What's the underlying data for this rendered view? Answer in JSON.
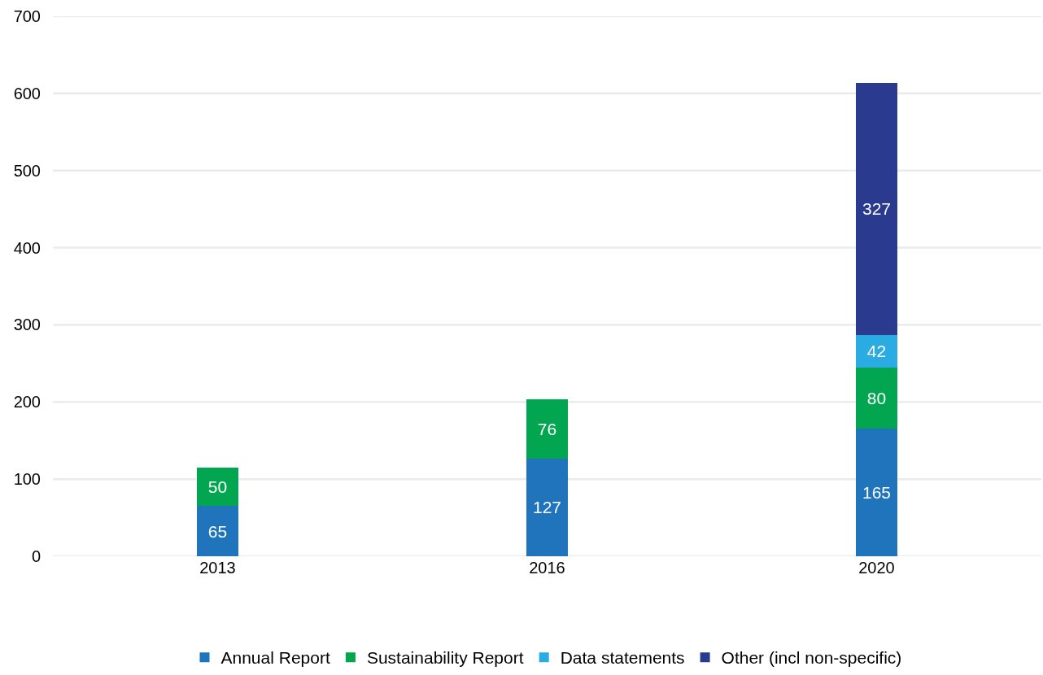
{
  "chart_data": {
    "type": "bar",
    "stacked": true,
    "categories": [
      "2013",
      "2016",
      "2020"
    ],
    "series": [
      {
        "name": "Annual Report",
        "color": "#1f74bc",
        "values": [
          65,
          127,
          165
        ]
      },
      {
        "name": "Sustainability Report",
        "color": "#02a550",
        "values": [
          50,
          76,
          80
        ]
      },
      {
        "name": "Data statements",
        "color": "#2aabe2",
        "values": [
          null,
          null,
          42
        ]
      },
      {
        "name": "Other (incl non-specific)",
        "color": "#2a3a8e",
        "values": [
          null,
          null,
          327
        ]
      }
    ],
    "ylim": [
      0,
      700
    ],
    "yticks": [
      0,
      100,
      200,
      300,
      400,
      500,
      600,
      700
    ],
    "grid": "y",
    "legend": "bottom",
    "data_labels": true
  }
}
